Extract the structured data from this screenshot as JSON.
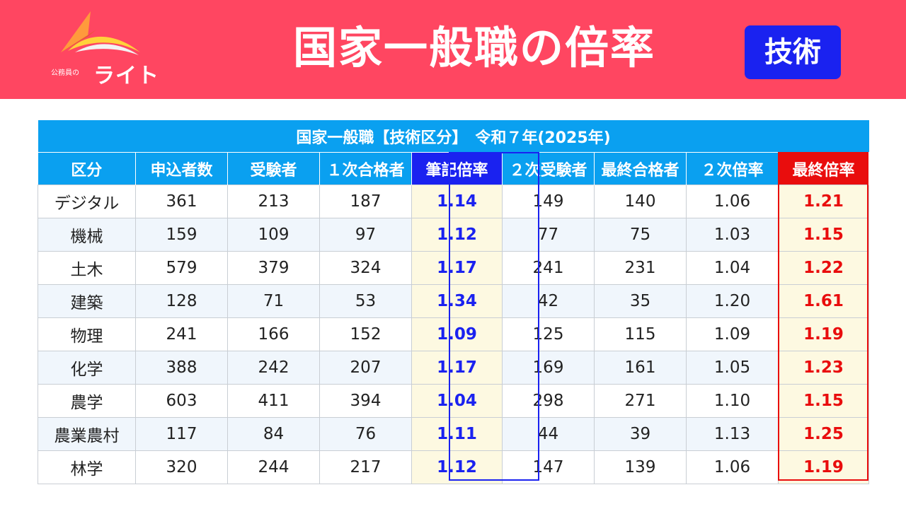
{
  "header": {
    "title": "国家一般職の倍率",
    "badge": "技術",
    "logo": {
      "small_text": "公務員の",
      "big_text": "ライト"
    }
  },
  "colors": {
    "header_bg": "#ff4661",
    "table_header_bg": "#0aa0f0",
    "written_accent": "#1a22f0",
    "final_accent": "#e90d0d",
    "highlight_cell_bg": "#fdf9e1"
  },
  "table": {
    "caption": "国家一般職【技術区分】　令和７年(2025年)",
    "columns": [
      "区分",
      "申込者数",
      "受験者",
      "１次合格者",
      "筆記倍率",
      "２次受験者",
      "最終合格者",
      "２次倍率",
      "最終倍率"
    ],
    "rows": [
      [
        "デジタル",
        "361",
        "213",
        "187",
        "1.14",
        "149",
        "140",
        "1.06",
        "1.21"
      ],
      [
        "機械",
        "159",
        "109",
        "97",
        "1.12",
        "77",
        "75",
        "1.03",
        "1.15"
      ],
      [
        "土木",
        "579",
        "379",
        "324",
        "1.17",
        "241",
        "231",
        "1.04",
        "1.22"
      ],
      [
        "建築",
        "128",
        "71",
        "53",
        "1.34",
        "42",
        "35",
        "1.20",
        "1.61"
      ],
      [
        "物理",
        "241",
        "166",
        "152",
        "1.09",
        "125",
        "115",
        "1.09",
        "1.19"
      ],
      [
        "化学",
        "388",
        "242",
        "207",
        "1.17",
        "169",
        "161",
        "1.05",
        "1.23"
      ],
      [
        "農学",
        "603",
        "411",
        "394",
        "1.04",
        "298",
        "271",
        "1.10",
        "1.15"
      ],
      [
        "農業農村",
        "117",
        "84",
        "76",
        "1.11",
        "44",
        "39",
        "1.13",
        "1.25"
      ],
      [
        "林学",
        "320",
        "244",
        "217",
        "1.12",
        "147",
        "139",
        "1.06",
        "1.19"
      ]
    ]
  }
}
